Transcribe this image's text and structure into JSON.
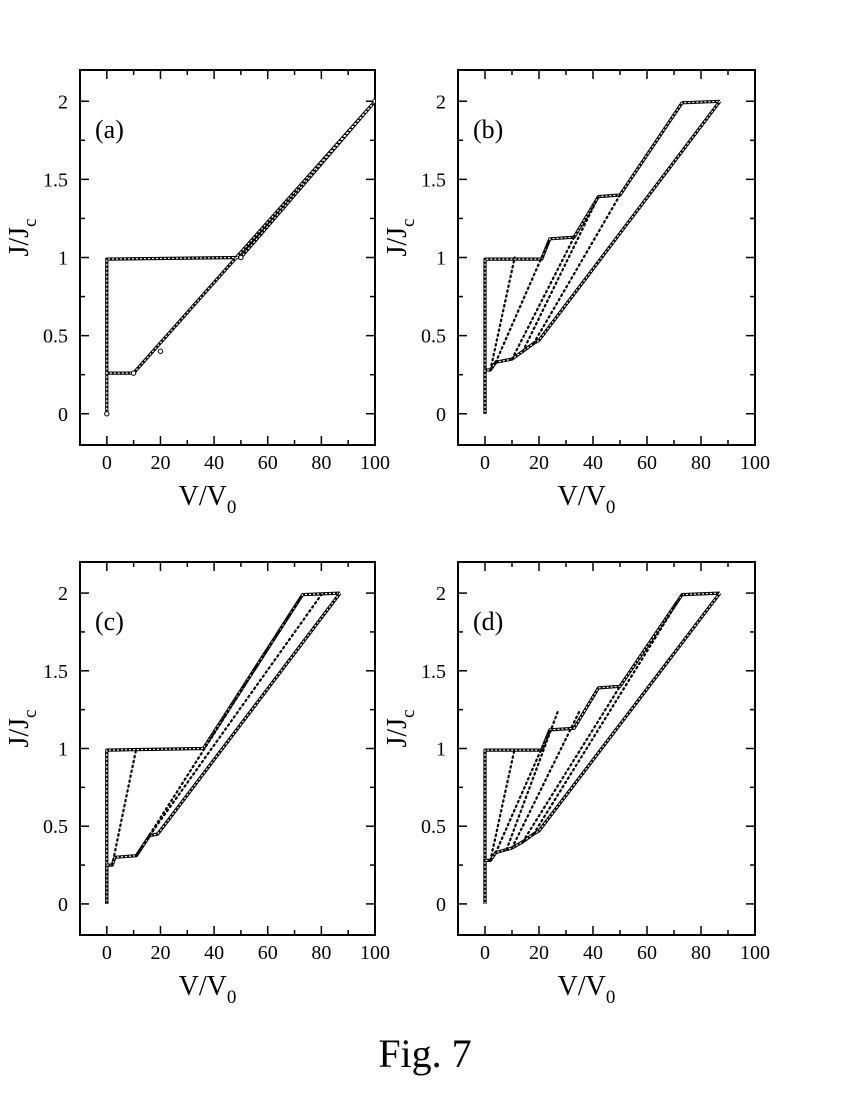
{
  "figure": {
    "caption": "Fig. 7"
  },
  "chart_data": [
    {
      "type": "line",
      "panel_label": "(a)",
      "xlabel": "V/V",
      "xlabel_sub": "0",
      "ylabel": "J/J",
      "ylabel_sub": "c",
      "xlim": [
        -10,
        100
      ],
      "ylim": [
        -0.2,
        2.2
      ],
      "xticks": [
        0,
        20,
        40,
        60,
        80,
        100
      ],
      "yticks": [
        0,
        0.5,
        1,
        1.5,
        2
      ],
      "series": [
        {
          "style": "solid",
          "x": [
            0,
            0,
            50,
            100,
            10,
            0,
            0
          ],
          "y": [
            0,
            0.99,
            1.0,
            2.0,
            0.26,
            0.26,
            0
          ]
        },
        {
          "style": "markers",
          "x": [
            0,
            10,
            20,
            50,
            100
          ],
          "y": [
            0,
            0.26,
            0.4,
            1.0,
            2.0
          ]
        }
      ]
    },
    {
      "type": "line",
      "panel_label": "(b)",
      "xlabel": "V/V",
      "xlabel_sub": "0",
      "ylabel": "J/J",
      "ylabel_sub": "c",
      "xlim": [
        -10,
        100
      ],
      "ylim": [
        -0.2,
        2.2
      ],
      "xticks": [
        0,
        20,
        40,
        60,
        80,
        100
      ],
      "yticks": [
        0,
        0.5,
        1,
        1.5,
        2
      ],
      "series": [
        {
          "style": "solid",
          "x": [
            0,
            0,
            21,
            24,
            33,
            42,
            50,
            73,
            87
          ],
          "y": [
            0,
            0.99,
            0.99,
            1.12,
            1.13,
            1.39,
            1.4,
            1.99,
            2.0
          ]
        },
        {
          "style": "solid",
          "x": [
            87,
            20,
            18,
            14,
            10,
            4,
            2,
            0,
            0
          ],
          "y": [
            2.0,
            0.47,
            0.45,
            0.4,
            0.35,
            0.33,
            0.28,
            0.28,
            0
          ]
        },
        {
          "style": "dotted",
          "x": [
            2,
            11
          ],
          "y": [
            0.28,
            1.0
          ]
        },
        {
          "style": "dotted",
          "x": [
            4,
            24
          ],
          "y": [
            0.33,
            1.12
          ]
        },
        {
          "style": "dotted",
          "x": [
            10,
            33
          ],
          "y": [
            0.35,
            1.13
          ]
        },
        {
          "style": "dotted",
          "x": [
            14,
            42
          ],
          "y": [
            0.4,
            1.39
          ]
        },
        {
          "style": "dotted",
          "x": [
            18,
            50
          ],
          "y": [
            0.45,
            1.4
          ]
        }
      ]
    },
    {
      "type": "line",
      "panel_label": "(c)",
      "xlabel": "V/V",
      "xlabel_sub": "0",
      "ylabel": "J/J",
      "ylabel_sub": "c",
      "xlim": [
        -10,
        100
      ],
      "ylim": [
        -0.2,
        2.2
      ],
      "xticks": [
        0,
        20,
        40,
        60,
        80,
        100
      ],
      "yticks": [
        0,
        0.5,
        1,
        1.5,
        2
      ],
      "series": [
        {
          "style": "solid",
          "x": [
            0,
            0,
            36,
            73,
            87
          ],
          "y": [
            0,
            0.99,
            1.0,
            1.99,
            2.0
          ]
        },
        {
          "style": "solid",
          "x": [
            87,
            19,
            16,
            11,
            3,
            2,
            0,
            0
          ],
          "y": [
            2.0,
            0.45,
            0.44,
            0.31,
            0.3,
            0.25,
            0.25,
            0
          ]
        },
        {
          "style": "dotted",
          "x": [
            2,
            11
          ],
          "y": [
            0.25,
            1.0
          ]
        },
        {
          "style": "dotted",
          "x": [
            11,
            73
          ],
          "y": [
            0.31,
            1.99
          ]
        },
        {
          "style": "dotted",
          "x": [
            16,
            80
          ],
          "y": [
            0.44,
            1.99
          ]
        }
      ]
    },
    {
      "type": "line",
      "panel_label": "(d)",
      "xlabel": "V/V",
      "xlabel_sub": "0",
      "ylabel": "J/J",
      "ylabel_sub": "c",
      "xlim": [
        -10,
        100
      ],
      "ylim": [
        -0.2,
        2.2
      ],
      "xticks": [
        0,
        20,
        40,
        60,
        80,
        100
      ],
      "yticks": [
        0,
        0.5,
        1,
        1.5,
        2
      ],
      "series": [
        {
          "style": "solid",
          "x": [
            0,
            0,
            21,
            24,
            33,
            42,
            50,
            73,
            87
          ],
          "y": [
            0,
            0.99,
            0.99,
            1.12,
            1.13,
            1.39,
            1.4,
            1.99,
            2.0
          ]
        },
        {
          "style": "solid",
          "x": [
            87,
            20,
            18,
            14,
            10,
            4,
            2,
            0,
            0
          ],
          "y": [
            2.0,
            0.47,
            0.45,
            0.4,
            0.36,
            0.33,
            0.28,
            0.28,
            0
          ]
        },
        {
          "style": "dotted",
          "x": [
            2,
            11
          ],
          "y": [
            0.28,
            1.0
          ]
        },
        {
          "style": "dotted",
          "x": [
            4,
            24
          ],
          "y": [
            0.33,
            1.12
          ]
        },
        {
          "style": "dotted",
          "x": [
            8,
            27
          ],
          "y": [
            0.35,
            1.24
          ]
        },
        {
          "style": "dotted",
          "x": [
            10,
            35
          ],
          "y": [
            0.36,
            1.24
          ]
        },
        {
          "style": "dotted",
          "x": [
            14,
            50
          ],
          "y": [
            0.4,
            1.4
          ]
        },
        {
          "style": "dotted",
          "x": [
            18,
            73
          ],
          "y": [
            0.45,
            1.99
          ]
        }
      ]
    }
  ]
}
